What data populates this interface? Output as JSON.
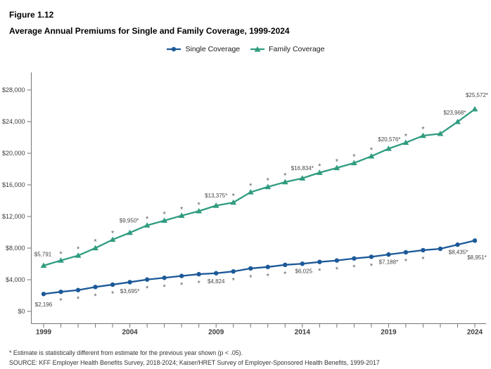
{
  "header": {
    "figure_number": "Figure 1.12",
    "title": "Average Annual Premiums for Single and Family Coverage, 1999-2024"
  },
  "legend": {
    "items": [
      {
        "label": "Single Coverage",
        "color": "#1c5998",
        "marker": "circle"
      },
      {
        "label": "Family Coverage",
        "color": "#2f9c80",
        "marker": "triangle"
      }
    ]
  },
  "footnotes": {
    "asterisk_note": "* Estimate is statistically different from estimate for the previous year shown (p < .05).",
    "source": "SOURCE: KFF Employer Health Benefits Survey, 2018-2024; Kaiser/HRET Survey of Employer-Sponsored Health Benefits, 1999-2017"
  },
  "chart_data": {
    "type": "line",
    "title": "Average Annual Premiums for Single and Family Coverage, 1999-2024",
    "x": [
      1999,
      2000,
      2001,
      2002,
      2003,
      2004,
      2005,
      2006,
      2007,
      2008,
      2009,
      2010,
      2011,
      2012,
      2013,
      2014,
      2015,
      2016,
      2017,
      2018,
      2019,
      2020,
      2021,
      2022,
      2023,
      2024
    ],
    "x_tick_labels": [
      "1999",
      "2004",
      "2009",
      "2014",
      "2019",
      "2024"
    ],
    "ylim": [
      0,
      28000
    ],
    "grid": false,
    "legend_position": "top",
    "yticks": [
      {
        "value": 0,
        "label": "$0"
      },
      {
        "value": 4000,
        "label": "$4,000"
      },
      {
        "value": 8000,
        "label": "$8,000"
      },
      {
        "value": 12000,
        "label": "$12,000"
      },
      {
        "value": 16000,
        "label": "$16,000"
      },
      {
        "value": 20000,
        "label": "$20,000"
      },
      {
        "value": 24000,
        "label": "$24,000"
      },
      {
        "value": 28000,
        "label": "$28,000"
      }
    ],
    "series": [
      {
        "name": "Single Coverage",
        "color": "#1c5998",
        "marker": "circle",
        "label_side": "below",
        "values": [
          2196,
          2471,
          2689,
          3083,
          3383,
          3695,
          4024,
          4242,
          4479,
          4704,
          4824,
          5049,
          5429,
          5615,
          5884,
          6025,
          6251,
          6435,
          6690,
          6896,
          7188,
          7470,
          7739,
          7911,
          8435,
          8951
        ],
        "significant_years": [
          2000,
          2001,
          2002,
          2003,
          2004,
          2005,
          2006,
          2007,
          2008,
          2010,
          2011,
          2012,
          2013,
          2015,
          2016,
          2017,
          2018,
          2019,
          2020,
          2021,
          2023,
          2024
        ],
        "point_labels": [
          {
            "year": 1999,
            "text": "$2,196",
            "dx": 0,
            "dy": 15
          },
          {
            "year": 2004,
            "text": "$3,695*",
            "dx": 0,
            "dy": 13
          },
          {
            "year": 2009,
            "text": "$4,824",
            "dx": 0,
            "dy": 12
          },
          {
            "year": 2014,
            "text": "$6,025",
            "dx": 2,
            "dy": 11
          },
          {
            "year": 2019,
            "text": "$7,188*",
            "dx": 0,
            "dy": 11
          },
          {
            "year": 2023,
            "text": "$8,435*",
            "dx": 1,
            "dy": 11
          },
          {
            "year": 2024,
            "text": "$8,951*",
            "dx": 3,
            "dy": 24
          }
        ]
      },
      {
        "name": "Family Coverage",
        "color": "#2f9c80",
        "marker": "triangle",
        "label_side": "above",
        "values": [
          5791,
          6438,
          7061,
          8003,
          9068,
          9950,
          10880,
          11480,
          12106,
          12680,
          13375,
          13770,
          15073,
          15745,
          16351,
          16834,
          17545,
          18142,
          18764,
          19616,
          20576,
          21342,
          22221,
          22463,
          23968,
          25572
        ],
        "significant_years": [
          2000,
          2001,
          2002,
          2003,
          2004,
          2005,
          2006,
          2007,
          2008,
          2009,
          2010,
          2011,
          2012,
          2013,
          2014,
          2015,
          2016,
          2017,
          2018,
          2019,
          2020,
          2021,
          2023,
          2024
        ],
        "point_labels": [
          {
            "year": 1999,
            "text": "$5,791",
            "dx": -1,
            "dy": -16
          },
          {
            "year": 2004,
            "text": "$9,950*",
            "dx": -1,
            "dy": -17
          },
          {
            "year": 2009,
            "text": "$13,375*",
            "dx": 0,
            "dy": -14
          },
          {
            "year": 2014,
            "text": "$16,834*",
            "dx": 0,
            "dy": -14
          },
          {
            "year": 2019,
            "text": "$20,576*",
            "dx": 1,
            "dy": -13
          },
          {
            "year": 2023,
            "text": "$23,968*",
            "dx": -4,
            "dy": -13
          },
          {
            "year": 2024,
            "text": "$25,572*",
            "dx": 3,
            "dy": -20
          }
        ]
      }
    ]
  }
}
